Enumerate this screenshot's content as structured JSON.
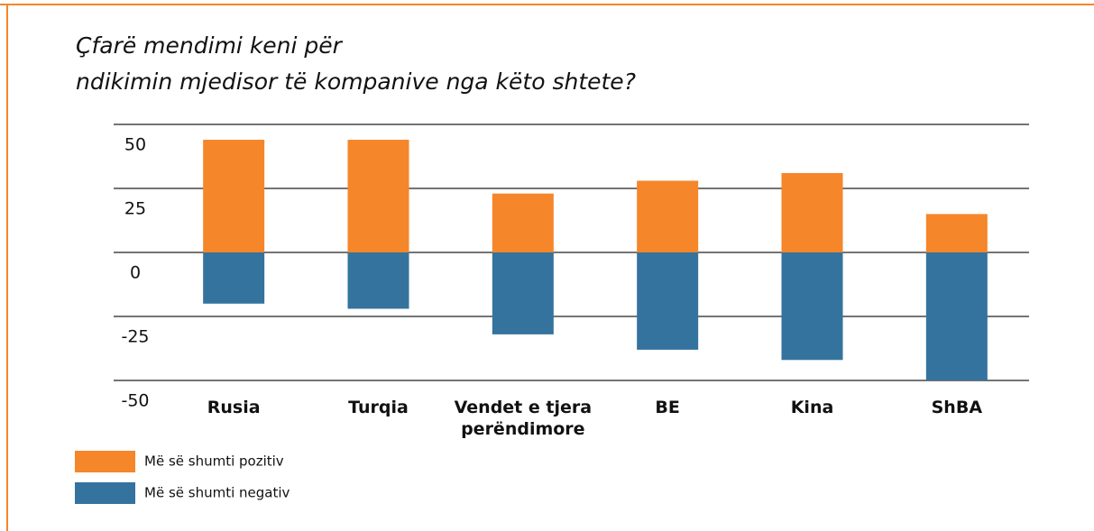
{
  "chart_data": {
    "type": "bar",
    "stacked": true,
    "title": "Çfarë mendimi keni për ndikimin mjedisor të kompanive nga këto shtete?",
    "categories": [
      "Rusia",
      "Turqia",
      "Vendet e tjera perëndimore",
      "BE",
      "Kina",
      "ShBA"
    ],
    "series": [
      {
        "name": "Më së shumti pozitiv",
        "color": "#f5862a",
        "values": [
          44,
          44,
          23,
          28,
          31,
          15
        ]
      },
      {
        "name": "Më së shumti negativ",
        "color": "#34739e",
        "values": [
          -20,
          -22,
          -32,
          -38,
          -42,
          -50
        ]
      }
    ],
    "ylim": [
      -50,
      50
    ],
    "yticks": [
      50,
      25,
      0,
      -25,
      -50
    ],
    "grid": true
  }
}
